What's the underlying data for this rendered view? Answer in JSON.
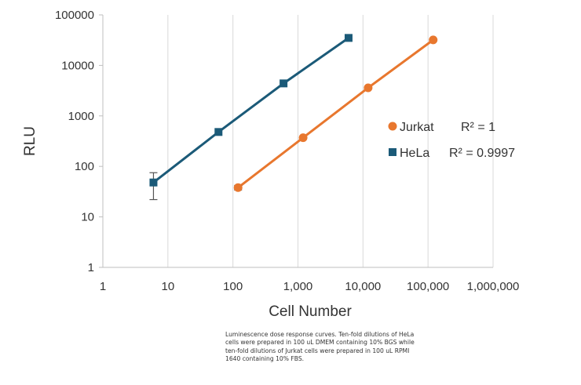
{
  "chart_data": {
    "type": "scatter",
    "title": "",
    "xlabel": "Cell Number",
    "ylabel": "RLU",
    "x_scale": "log",
    "y_scale": "log",
    "xlim": [
      1,
      1000000
    ],
    "ylim": [
      1,
      100000
    ],
    "x_ticks": [
      "1",
      "10",
      "100",
      "1,000",
      "10,000",
      "100,000",
      "1,000,000"
    ],
    "y_ticks": [
      "1",
      "10",
      "100",
      "1000",
      "10000",
      "100000"
    ],
    "grid": "vertical",
    "legend_position": "right",
    "series": [
      {
        "name": "Jurkat",
        "marker": "circle",
        "color": "#E8772E",
        "x": [
          120,
          1200,
          12000,
          120000
        ],
        "y": [
          38,
          370,
          3600,
          32000
        ],
        "error_low": [
          34,
          null,
          null,
          null
        ],
        "error_high": [
          42,
          null,
          null,
          null
        ],
        "r2": "R² = 1"
      },
      {
        "name": "HeLa",
        "marker": "square",
        "color": "#1B5A78",
        "x": [
          6,
          60,
          600,
          6000
        ],
        "y": [
          48,
          480,
          4400,
          35000
        ],
        "error_low": [
          22,
          null,
          null,
          null
        ],
        "error_high": [
          75,
          null,
          null,
          null
        ],
        "r2": "R² = 0.9997"
      }
    ]
  },
  "caption": "Luminescence dose response curves. Ten-fold dilutions of HeLa cells were prepared in 100 uL DMEM containing 10% BGS while ten-fold dilutions of Jurkat cells were prepared in 100 uL RPMI 1640 containing 10% FBS."
}
